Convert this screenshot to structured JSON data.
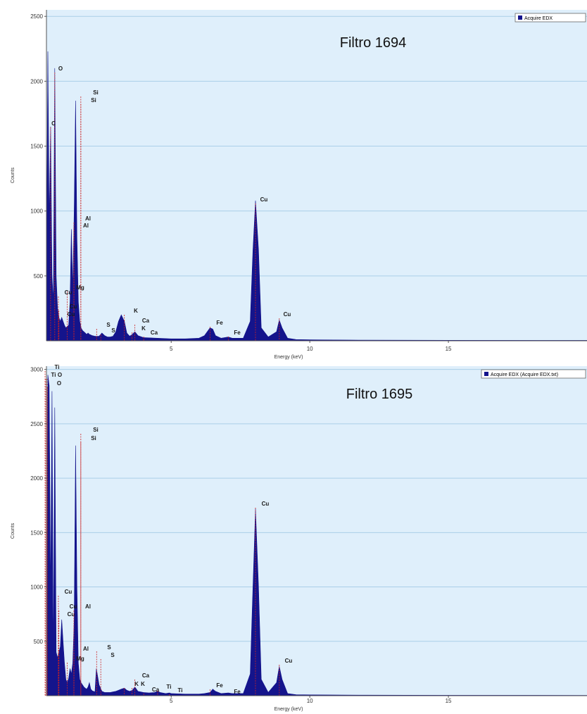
{
  "chart_data": [
    {
      "type": "area",
      "title": "Filtro 1694",
      "xlabel": "Energy (keV)",
      "ylabel": "Counts",
      "xlim": [
        0.5,
        20
      ],
      "ylim": [
        0,
        2550
      ],
      "xticks": [
        5,
        10,
        15
      ],
      "yticks": [
        500,
        1000,
        1500,
        2000,
        2500
      ],
      "grid": true,
      "background": "#dfeffb",
      "gridline_color": "#aacfe8",
      "fill_color": "#14148c",
      "marker_color": "#cc2222",
      "legend": {
        "position": "top-right",
        "entries": [
          "Acquire EDX"
        ]
      },
      "series": [
        {
          "name": "Acquire EDX",
          "x": [
            0.5,
            0.55,
            0.6,
            0.65,
            0.7,
            0.75,
            0.8,
            0.85,
            0.9,
            0.95,
            1.0,
            1.05,
            1.1,
            1.15,
            1.2,
            1.25,
            1.3,
            1.35,
            1.4,
            1.45,
            1.5,
            1.55,
            1.6,
            1.65,
            1.7,
            1.75,
            1.8,
            1.85,
            1.9,
            1.95,
            2.0,
            2.05,
            2.1,
            2.15,
            2.2,
            2.25,
            2.3,
            2.4,
            2.5,
            2.6,
            2.7,
            2.8,
            2.9,
            3.0,
            3.1,
            3.2,
            3.31,
            3.4,
            3.5,
            3.6,
            3.69,
            3.8,
            4.0,
            4.5,
            5.0,
            5.5,
            6.0,
            6.2,
            6.4,
            6.5,
            6.6,
            6.8,
            7.06,
            7.2,
            7.6,
            7.85,
            7.95,
            8.04,
            8.15,
            8.25,
            8.5,
            8.8,
            8.9,
            9.0,
            9.2,
            9.5,
            10.0,
            12.0,
            15.0,
            20.0
          ],
          "y": [
            500,
            2230,
            900,
            1650,
            500,
            300,
            2100,
            500,
            250,
            180,
            150,
            180,
            150,
            120,
            100,
            110,
            120,
            300,
            860,
            400,
            1000,
            1850,
            800,
            300,
            150,
            100,
            80,
            70,
            60,
            50,
            60,
            50,
            45,
            40,
            38,
            35,
            35,
            35,
            60,
            40,
            30,
            30,
            35,
            70,
            150,
            200,
            150,
            60,
            35,
            50,
            70,
            40,
            25,
            20,
            15,
            15,
            20,
            40,
            100,
            90,
            40,
            20,
            30,
            20,
            20,
            150,
            700,
            1080,
            700,
            100,
            30,
            70,
            160,
            100,
            20,
            10,
            8,
            5,
            4,
            3
          ]
        }
      ],
      "peak_labels": [
        {
          "text": "O",
          "x": 0.8
        },
        {
          "text": "C",
          "x": 0.65
        },
        {
          "text": "Si",
          "x": 1.74
        },
        {
          "text": "Si",
          "x": 1.74
        },
        {
          "text": "Al",
          "x": 1.49
        },
        {
          "text": "Al",
          "x": 1.49
        },
        {
          "text": "Mg",
          "x": 1.25
        },
        {
          "text": "Cu",
          "x": 0.93
        },
        {
          "text": "Cu",
          "x": 0.95
        },
        {
          "text": "Cu",
          "x": 0.93
        },
        {
          "text": "K",
          "x": 3.31
        },
        {
          "text": "S",
          "x": 2.31
        },
        {
          "text": "S",
          "x": 2.46
        },
        {
          "text": "Ca",
          "x": 3.69
        },
        {
          "text": "K",
          "x": 3.59
        },
        {
          "text": "Ca",
          "x": 4.01
        },
        {
          "text": "Fe",
          "x": 6.4
        },
        {
          "text": "Fe",
          "x": 7.06
        },
        {
          "text": "Cu",
          "x": 8.04
        },
        {
          "text": "Cu",
          "x": 8.9
        }
      ]
    },
    {
      "type": "area",
      "title": "Filtro 1695",
      "xlabel": "Energy (keV)",
      "ylabel": "Counts",
      "xlim": [
        0.5,
        20
      ],
      "ylim": [
        0,
        3030
      ],
      "xticks": [
        5,
        10,
        15
      ],
      "yticks": [
        500,
        1000,
        1500,
        2000,
        2500,
        3000
      ],
      "grid": true,
      "background": "#dfeffb",
      "gridline_color": "#aacfe8",
      "fill_color": "#14148c",
      "marker_color": "#cc2222",
      "legend": {
        "position": "top-right",
        "entries": [
          "Acquire EDX (Acquire EDX.txt)"
        ]
      },
      "series": [
        {
          "name": "Acquire EDX (Acquire EDX.txt)",
          "x": [
            0.5,
            0.55,
            0.6,
            0.65,
            0.7,
            0.75,
            0.8,
            0.85,
            0.9,
            0.95,
            1.0,
            1.05,
            1.1,
            1.15,
            1.2,
            1.25,
            1.3,
            1.35,
            1.4,
            1.45,
            1.5,
            1.55,
            1.6,
            1.65,
            1.7,
            1.75,
            1.8,
            1.85,
            1.9,
            1.95,
            2.0,
            2.05,
            2.1,
            2.15,
            2.2,
            2.25,
            2.3,
            2.4,
            2.5,
            2.6,
            2.7,
            2.8,
            2.9,
            3.0,
            3.1,
            3.2,
            3.31,
            3.4,
            3.5,
            3.6,
            3.69,
            3.8,
            4.0,
            4.2,
            4.4,
            4.51,
            4.6,
            4.8,
            4.93,
            5.0,
            5.5,
            6.0,
            6.2,
            6.4,
            6.5,
            6.6,
            6.8,
            7.06,
            7.2,
            7.6,
            7.85,
            7.95,
            8.04,
            8.15,
            8.25,
            8.5,
            8.8,
            8.9,
            9.0,
            9.2,
            9.5,
            10.0,
            12.0,
            15.0,
            20.0
          ],
          "y": [
            350,
            2950,
            2850,
            900,
            2800,
            300,
            2650,
            400,
            350,
            400,
            450,
            700,
            500,
            300,
            150,
            120,
            160,
            250,
            200,
            300,
            700,
            2300,
            1000,
            300,
            150,
            120,
            100,
            80,
            70,
            60,
            80,
            120,
            60,
            45,
            40,
            35,
            250,
            100,
            40,
            30,
            30,
            30,
            35,
            40,
            50,
            60,
            70,
            50,
            40,
            50,
            80,
            40,
            30,
            25,
            30,
            40,
            30,
            20,
            25,
            20,
            15,
            15,
            20,
            30,
            60,
            40,
            20,
            25,
            20,
            20,
            200,
            1000,
            1720,
            1000,
            150,
            30,
            120,
            270,
            150,
            20,
            10,
            8,
            5,
            4,
            3
          ]
        }
      ],
      "peak_labels": [
        {
          "text": "Ti",
          "x": 0.45
        },
        {
          "text": "O",
          "x": 0.52
        },
        {
          "text": "Ti",
          "x": 0.46
        },
        {
          "text": "O",
          "x": 0.53
        },
        {
          "text": "Si",
          "x": 1.74
        },
        {
          "text": "Si",
          "x": 1.74
        },
        {
          "text": "Cu",
          "x": 0.93
        },
        {
          "text": "Cu",
          "x": 0.95
        },
        {
          "text": "Cu",
          "x": 0.93
        },
        {
          "text": "Al",
          "x": 1.49
        },
        {
          "text": "Al",
          "x": 1.49
        },
        {
          "text": "Mg",
          "x": 1.25
        },
        {
          "text": "S",
          "x": 2.31
        },
        {
          "text": "S",
          "x": 2.46
        },
        {
          "text": "K",
          "x": 3.31
        },
        {
          "text": "Ca",
          "x": 3.69
        },
        {
          "text": "K",
          "x": 3.59
        },
        {
          "text": "Ca",
          "x": 4.01
        },
        {
          "text": "Ti",
          "x": 4.51
        },
        {
          "text": "Ti",
          "x": 4.93
        },
        {
          "text": "Fe",
          "x": 6.4
        },
        {
          "text": "Fe",
          "x": 7.06
        },
        {
          "text": "Cu",
          "x": 8.04
        },
        {
          "text": "Cu",
          "x": 8.9
        }
      ]
    }
  ]
}
